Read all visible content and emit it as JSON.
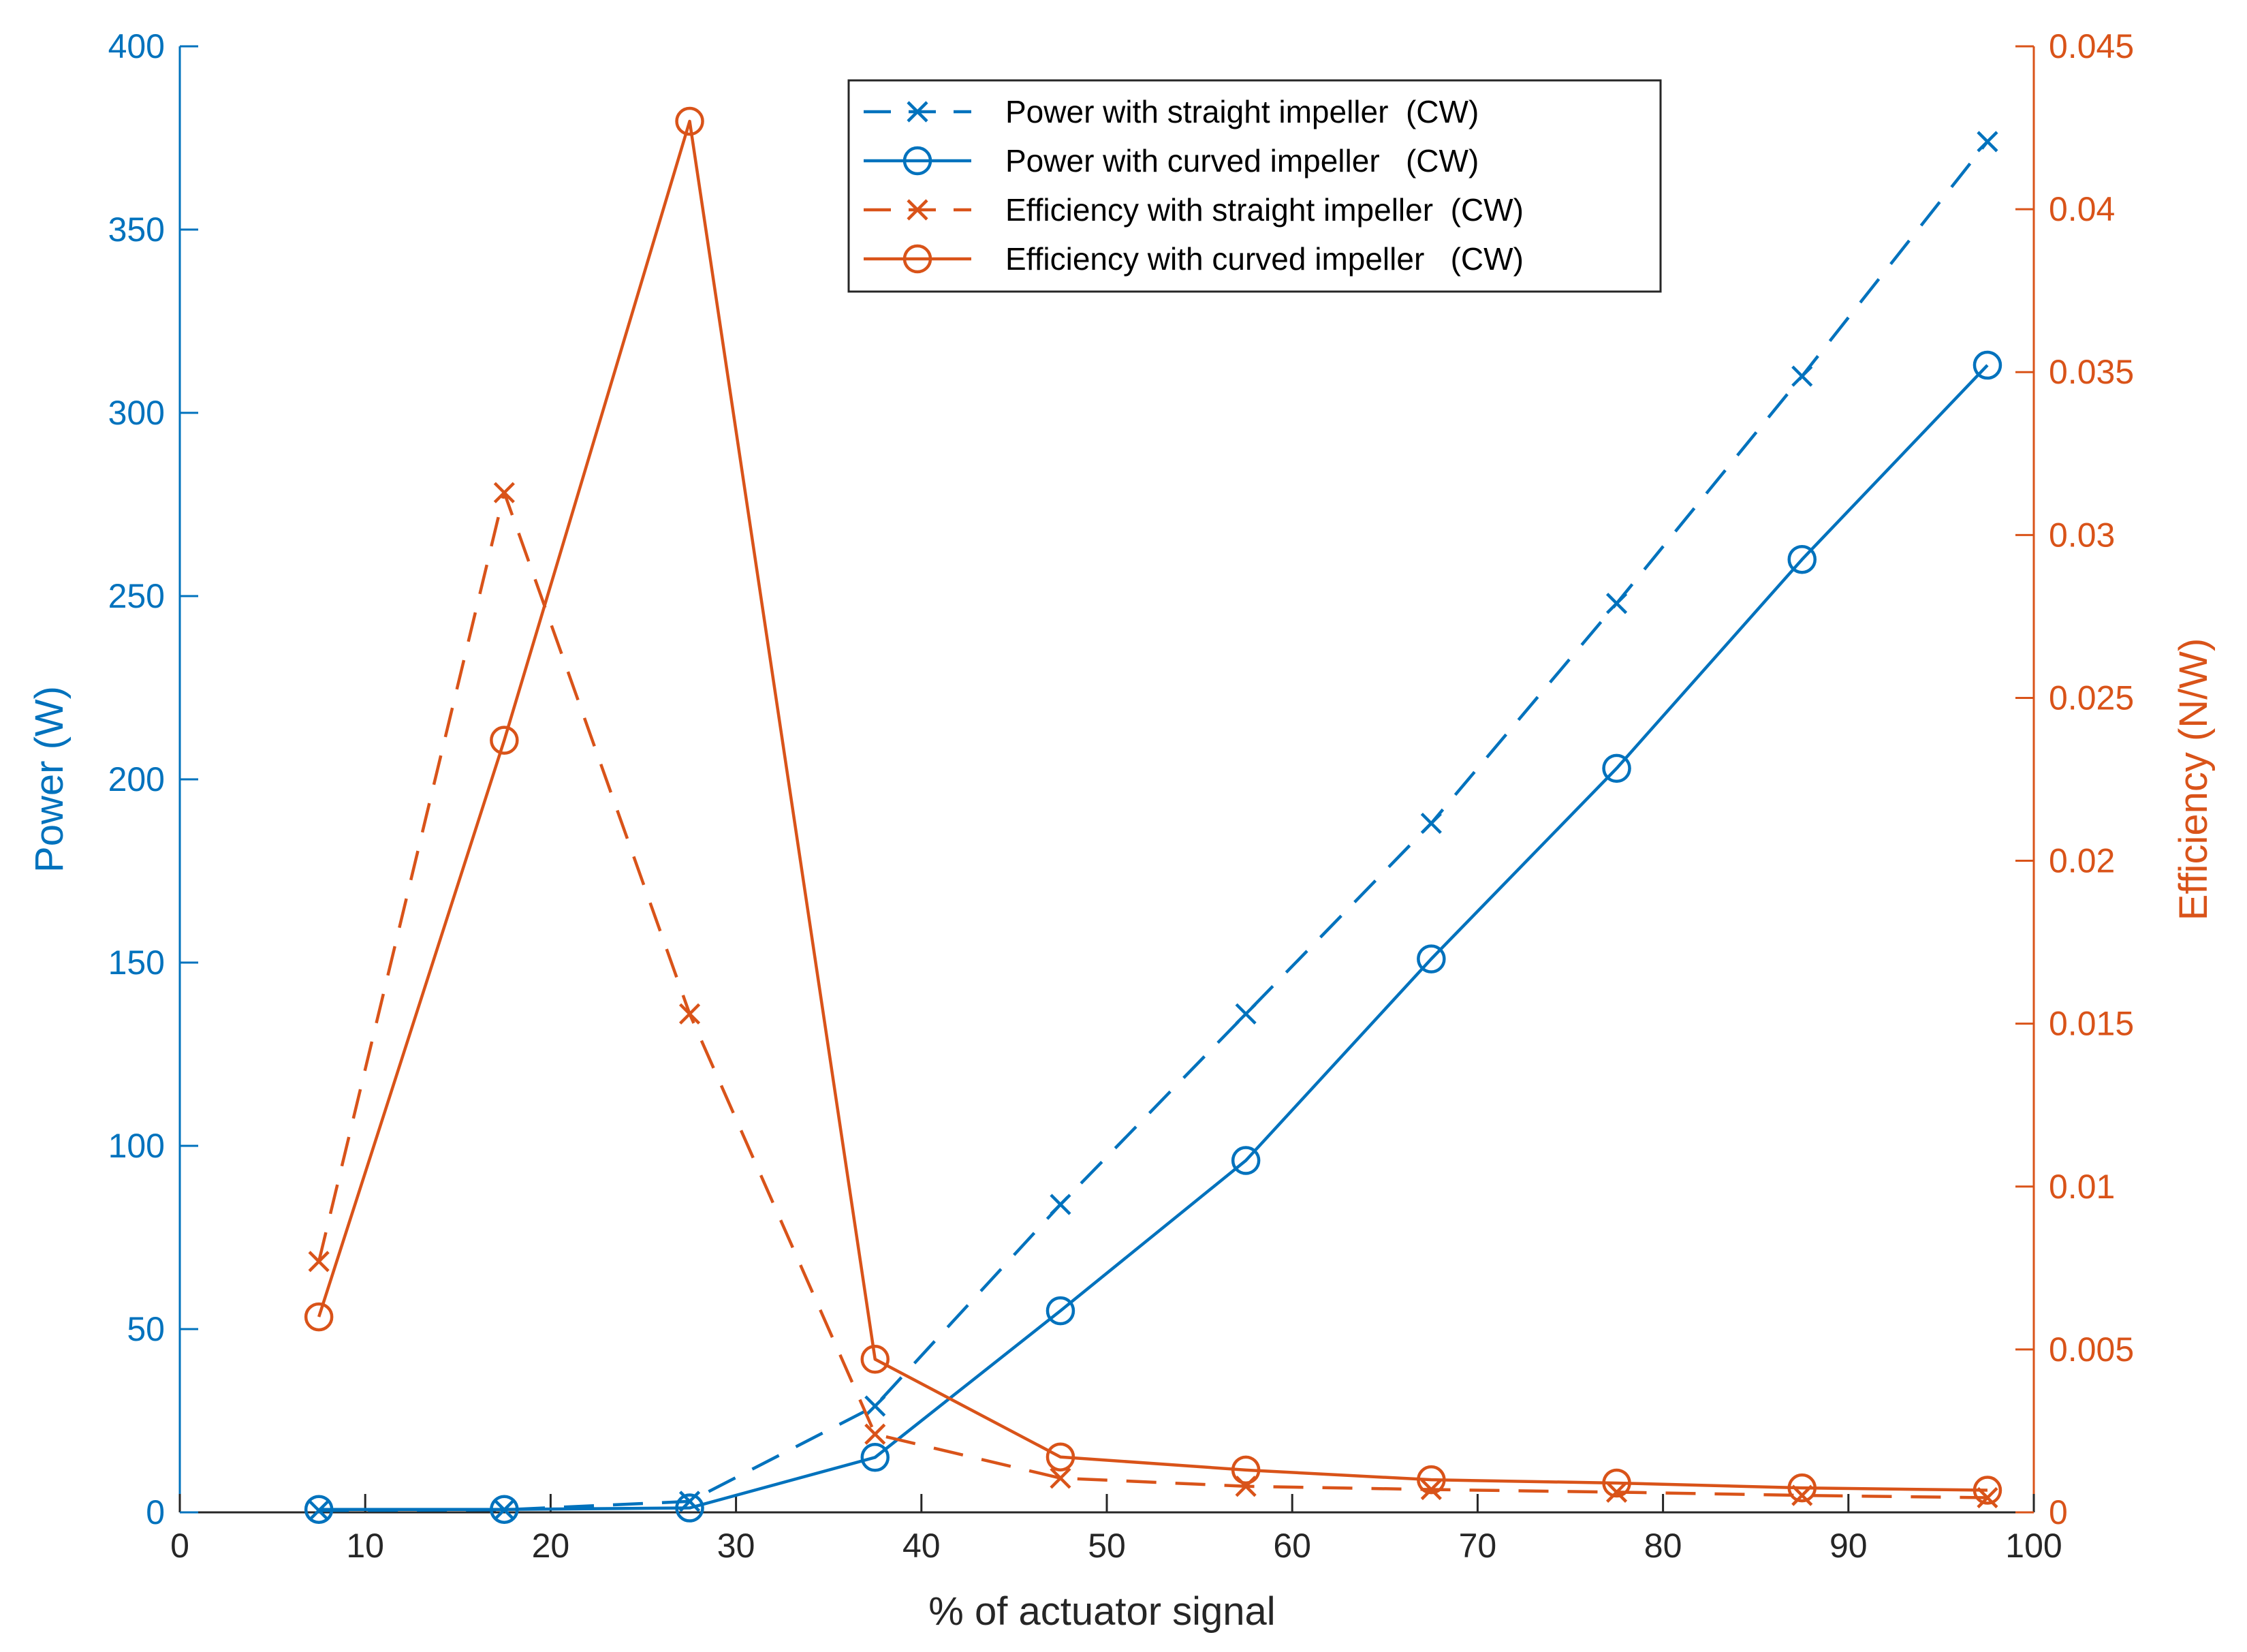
{
  "chart_data": {
    "type": "line",
    "xlabel": "% of actuator signal",
    "ylabel_left": "Power (W)",
    "ylabel_right": "Efficiency (N/W)",
    "xlim": [
      0,
      100
    ],
    "ylim_left": [
      0,
      400
    ],
    "ylim_right": [
      0,
      0.045
    ],
    "x_ticks": [
      "0",
      "10",
      "20",
      "30",
      "40",
      "50",
      "60",
      "70",
      "80",
      "90",
      "100"
    ],
    "y_left_ticks": [
      "0",
      "50",
      "100",
      "150",
      "200",
      "250",
      "300",
      "350",
      "400"
    ],
    "y_right_ticks": [
      "0",
      "0.005",
      "0.01",
      "0.015",
      "0.02",
      "0.025",
      "0.03",
      "0.035",
      "0.04",
      "0.045"
    ],
    "colors": {
      "power": "#0072BD",
      "efficiency": "#D95319",
      "axis": "#262626"
    },
    "grid": false,
    "legend_position": "top-center",
    "x": [
      7.5,
      17.5,
      27.5,
      37.5,
      47.5,
      57.5,
      67.5,
      77.5,
      87.5,
      97.5
    ],
    "series": [
      {
        "name": "Power with straight impeller  (CW)",
        "axis": "left",
        "color_key": "power",
        "line": "dashed",
        "marker": "x",
        "values": [
          0.5,
          0.7,
          3,
          29,
          84,
          136,
          188,
          248,
          310,
          374
        ]
      },
      {
        "name": "Power with curved impeller   (CW)",
        "axis": "left",
        "color_key": "power",
        "line": "solid",
        "marker": "o",
        "values": [
          0.8,
          0.8,
          1.2,
          15,
          55,
          96,
          151,
          203,
          260,
          313
        ]
      },
      {
        "name": "Efficiency with straight impeller  (CW)",
        "axis": "right",
        "color_key": "efficiency",
        "line": "dashed",
        "marker": "x",
        "values": [
          0.0077,
          0.0313,
          0.0153,
          0.0024,
          0.00105,
          0.0008,
          0.0007,
          0.00062,
          0.00052,
          0.00045
        ]
      },
      {
        "name": "Efficiency with curved impeller   (CW)",
        "axis": "right",
        "color_key": "efficiency",
        "line": "solid",
        "marker": "o",
        "values": [
          0.006,
          0.0237,
          0.0427,
          0.0047,
          0.0017,
          0.0013,
          0.001,
          0.0009,
          0.00075,
          0.00068
        ]
      }
    ]
  }
}
